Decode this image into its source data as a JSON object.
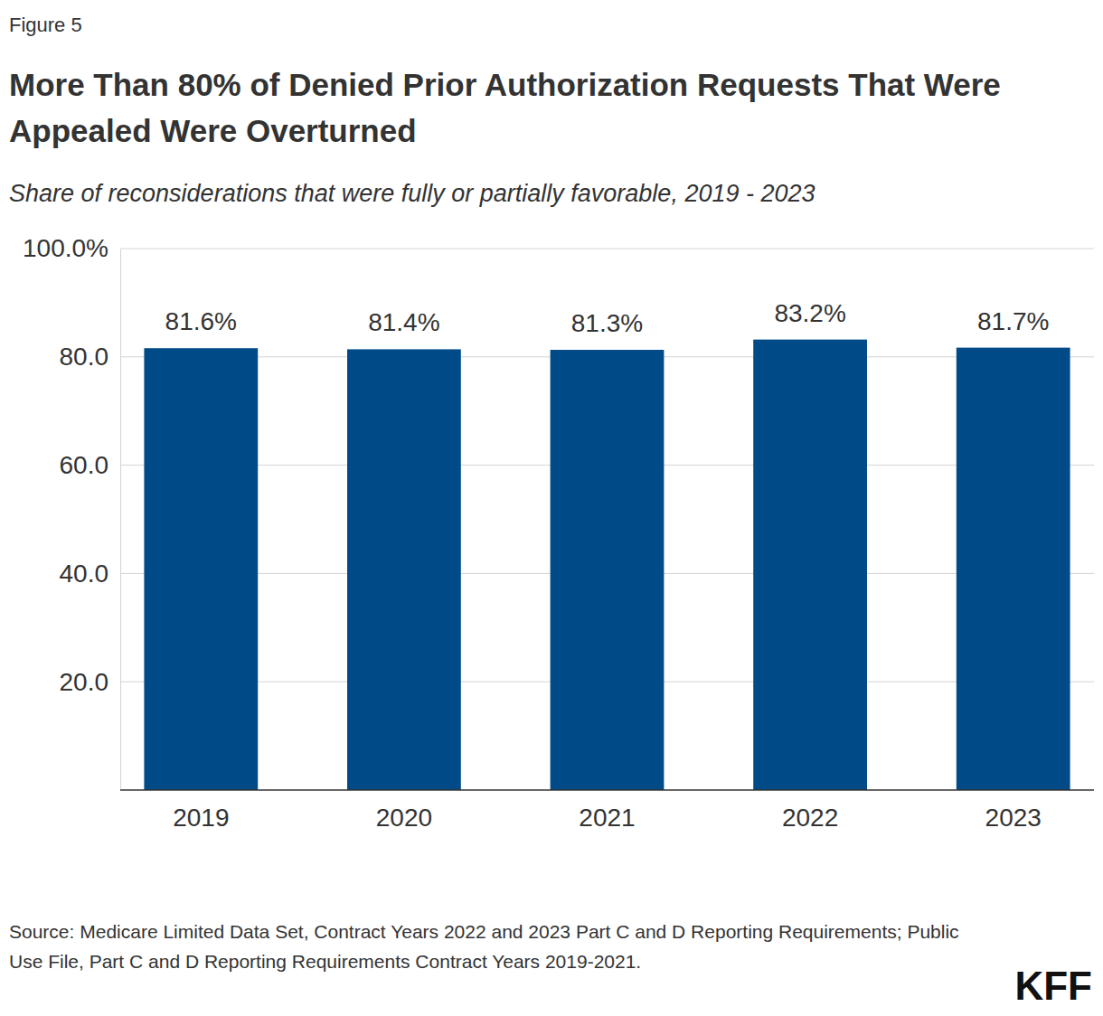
{
  "chart_data": {
    "type": "bar",
    "figure_label": "Figure 5",
    "title": "More Than 80% of Denied Prior Authorization Requests That Were Appealed Were Overturned",
    "subtitle": "Share of reconsiderations that were fully or partially favorable, 2019 - 2023",
    "categories": [
      "2019",
      "2020",
      "2021",
      "2022",
      "2023"
    ],
    "values": [
      81.6,
      81.4,
      81.3,
      83.2,
      81.7
    ],
    "value_labels": [
      "81.6%",
      "81.4%",
      "81.3%",
      "83.2%",
      "81.7%"
    ],
    "color": "#004b87",
    "ylim": [
      0,
      100
    ],
    "yticks": [
      {
        "value": 20,
        "label": "20.0"
      },
      {
        "value": 40,
        "label": "40.0"
      },
      {
        "value": 60,
        "label": "60.0"
      },
      {
        "value": 80,
        "label": "80.0"
      },
      {
        "value": 100,
        "label": "100.0%"
      }
    ],
    "grid": true,
    "data_labels": true,
    "source": "Source: Medicare Limited Data Set, Contract Years 2022 and 2023 Part C and D Reporting Requirements; Public Use File, Part C and D Reporting Requirements Contract Years 2019-2021.",
    "logo": "KFF"
  }
}
